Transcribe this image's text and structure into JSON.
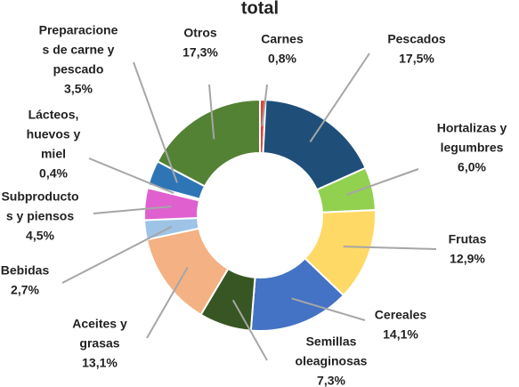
{
  "chart_data": {
    "type": "donut",
    "title": "total",
    "categories": [
      [
        "Carnes"
      ],
      [
        "Pescados"
      ],
      [
        "Hortalizas y",
        "legumbres"
      ],
      [
        "Frutas"
      ],
      [
        "Cereales"
      ],
      [
        "Semillas",
        "oleaginosas"
      ],
      [
        "Aceites y",
        "grasas"
      ],
      [
        "Bebidas"
      ],
      [
        "Subproducto",
        "s y piensos"
      ],
      [
        "Lácteos,",
        "huevos y",
        "miel"
      ],
      [
        "Preparacione",
        "s de carne y",
        "pescado"
      ],
      [
        "Otros"
      ]
    ],
    "values": [
      0.8,
      17.5,
      6.0,
      12.9,
      14.1,
      7.3,
      13.1,
      2.7,
      4.5,
      0.4,
      3.5,
      17.3
    ],
    "value_labels": [
      "0,8%",
      "17,5%",
      "6,0%",
      "12,9%",
      "14,1%",
      "7,3%",
      "13,1%",
      "2,7%",
      "4,5%",
      "0,4%",
      "3,5%",
      "17,3%"
    ],
    "colors": [
      "#e8413c",
      "#1f4e79",
      "#92d050",
      "#ffd966",
      "#4472c4",
      "#375623",
      "#f4b183",
      "#9dc3e6",
      "#e060d0",
      "#f2f2f2",
      "#2e75b6",
      "#548235"
    ]
  }
}
